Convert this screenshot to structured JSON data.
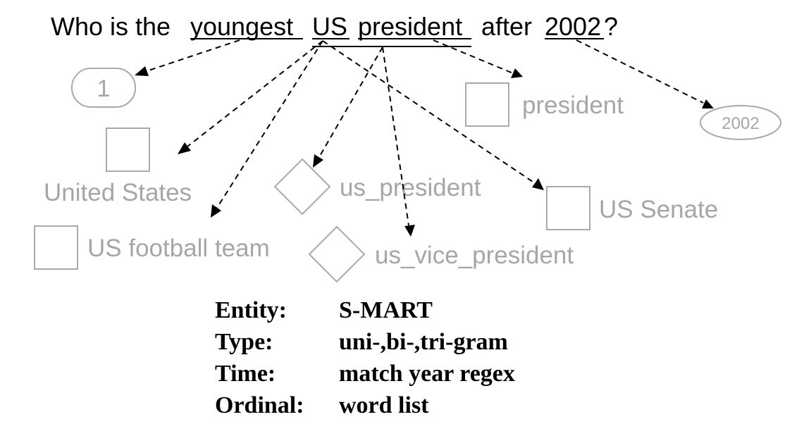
{
  "question": {
    "w1": "Who is the",
    "w2": "youngest",
    "w3": "US",
    "w4": "president",
    "w5": "after",
    "w6": "2002",
    "w7": "?"
  },
  "nodes": {
    "ordinal_value": "1",
    "united_states": "United States",
    "us_football_team": "US football team",
    "us_president": "us_president",
    "us_vice_president": "us_vice_president",
    "president": "president",
    "us_senate": "US Senate",
    "year_value": "2002"
  },
  "legend": [
    {
      "key": "Entity:",
      "value": "S-MART"
    },
    {
      "key": "Type:",
      "value": "uni-,bi-,tri-gram"
    },
    {
      "key": "Time:",
      "value": "match year regex"
    },
    {
      "key": "Ordinal:",
      "value": "word list"
    }
  ],
  "colors": {
    "question_text": "#000000",
    "candidate_gray": "#a6a6a6",
    "arrow": "#000000"
  }
}
